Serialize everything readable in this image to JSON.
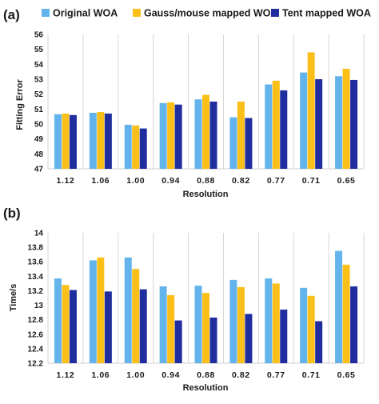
{
  "legend": [
    {
      "name": "Original WOA",
      "color": "#63b4ec"
    },
    {
      "name": "Gauss/mouse mapped WOA",
      "color": "#fbbf1a"
    },
    {
      "name": "Tent mapped WOA",
      "color": "#1f2d9e"
    }
  ],
  "chart_data": [
    {
      "type": "bar",
      "panel_label": "(a)",
      "categories": [
        "1.12",
        "1.06",
        "1.00",
        "0.94",
        "0.88",
        "0.82",
        "0.77",
        "0.71",
        "0.65"
      ],
      "series": [
        {
          "name": "Original WOA",
          "values": [
            50.65,
            50.75,
            49.95,
            51.4,
            51.65,
            50.45,
            52.65,
            53.45,
            53.2
          ]
        },
        {
          "name": "Gauss/mouse mapped WOA",
          "values": [
            50.7,
            50.8,
            49.9,
            51.45,
            51.95,
            51.5,
            52.9,
            54.8,
            53.7
          ]
        },
        {
          "name": "Tent mapped WOA",
          "values": [
            50.6,
            50.7,
            49.7,
            51.3,
            51.5,
            50.4,
            52.25,
            53.0,
            52.95
          ]
        }
      ],
      "xlabel": "Resolution",
      "ylabel": "Fitting Error",
      "ylim": [
        47,
        56
      ],
      "yticks": [
        "47",
        "48",
        "49",
        "50",
        "51",
        "52",
        "53",
        "54",
        "55",
        "56"
      ],
      "grid": "vertical lines between categories"
    },
    {
      "type": "bar",
      "panel_label": "(b)",
      "categories": [
        "1.12",
        "1.06",
        "1.00",
        "0.94",
        "0.88",
        "0.82",
        "0.77",
        "0.71",
        "0.65"
      ],
      "series": [
        {
          "name": "Original WOA",
          "values": [
            13.37,
            13.62,
            13.66,
            13.26,
            13.27,
            13.35,
            13.37,
            13.24,
            13.75
          ]
        },
        {
          "name": "Gauss/mouse mapped WOA",
          "values": [
            13.28,
            13.66,
            13.5,
            13.14,
            13.17,
            13.25,
            13.3,
            13.13,
            13.56
          ]
        },
        {
          "name": "Tent mapped WOA",
          "values": [
            13.21,
            13.19,
            13.22,
            12.79,
            12.83,
            12.88,
            12.94,
            12.78,
            13.26
          ]
        }
      ],
      "xlabel": "Resolution",
      "ylabel": "Time/s",
      "ylim": [
        12.2,
        14
      ],
      "yticks": [
        "12.2",
        "12.4",
        "12.6",
        "12.8",
        "13",
        "13.2",
        "13.4",
        "13.6",
        "13.8",
        "14"
      ],
      "grid": "vertical lines between categories"
    }
  ]
}
